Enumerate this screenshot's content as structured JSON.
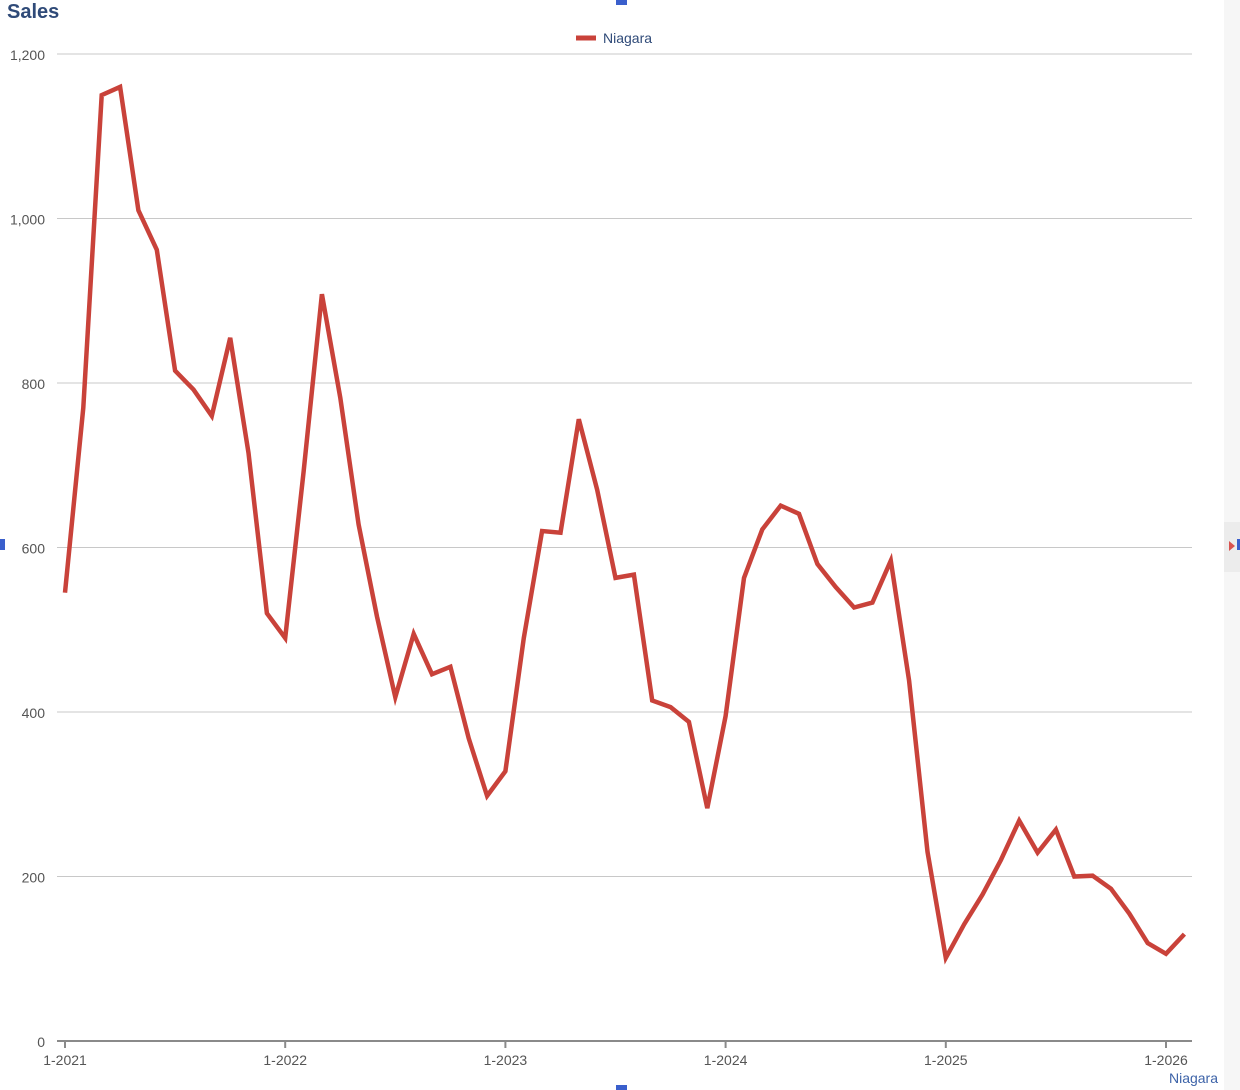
{
  "chart_data": {
    "type": "line",
    "title": "Sales",
    "xlabel": "",
    "ylabel": "",
    "ylim": [
      0,
      1200
    ],
    "yticks": [
      0,
      200,
      400,
      600,
      800,
      1000,
      1200
    ],
    "ytick_labels": [
      "0",
      "200",
      "400",
      "600",
      "800",
      "1,000",
      "1,200"
    ],
    "x_start": "1-2021",
    "xticks": [
      "1-2021",
      "1-2022",
      "1-2023",
      "1-2024",
      "1-2025",
      "1-2026"
    ],
    "grid": true,
    "legend": "top-center",
    "x": [
      "1-2021",
      "2-2021",
      "3-2021",
      "4-2021",
      "5-2021",
      "6-2021",
      "7-2021",
      "8-2021",
      "9-2021",
      "10-2021",
      "11-2021",
      "12-2021",
      "1-2022",
      "2-2022",
      "3-2022",
      "4-2022",
      "5-2022",
      "6-2022",
      "7-2022",
      "8-2022",
      "9-2022",
      "10-2022",
      "11-2022",
      "12-2022",
      "1-2023",
      "2-2023",
      "3-2023",
      "4-2023",
      "5-2023",
      "6-2023",
      "7-2023",
      "8-2023",
      "9-2023",
      "10-2023",
      "11-2023",
      "12-2023",
      "1-2024",
      "2-2024",
      "3-2024",
      "4-2024",
      "5-2024",
      "6-2024",
      "7-2024",
      "8-2024",
      "9-2024",
      "10-2024",
      "11-2024",
      "12-2024",
      "1-2025",
      "2-2025",
      "3-2025",
      "4-2025",
      "5-2025",
      "6-2025",
      "7-2025",
      "8-2025",
      "9-2025",
      "10-2025",
      "11-2025",
      "12-2025",
      "1-2026",
      "2-2026"
    ],
    "series": [
      {
        "name": "Niagara",
        "color": "#c9423a",
        "values": [
          545,
          770,
          1150,
          1160,
          1010,
          962,
          815,
          792,
          760,
          855,
          715,
          520,
          490,
          692,
          908,
          782,
          628,
          516,
          418,
          495,
          446,
          455,
          368,
          298,
          328,
          490,
          620,
          618,
          756,
          670,
          563,
          567,
          414,
          406,
          388,
          283,
          395,
          563,
          622,
          651,
          641,
          580,
          552,
          527,
          533,
          584,
          438,
          230,
          101,
          142,
          178,
          220,
          268,
          229,
          257,
          200,
          201,
          185,
          155,
          119,
          106,
          130
        ]
      }
    ]
  }
}
